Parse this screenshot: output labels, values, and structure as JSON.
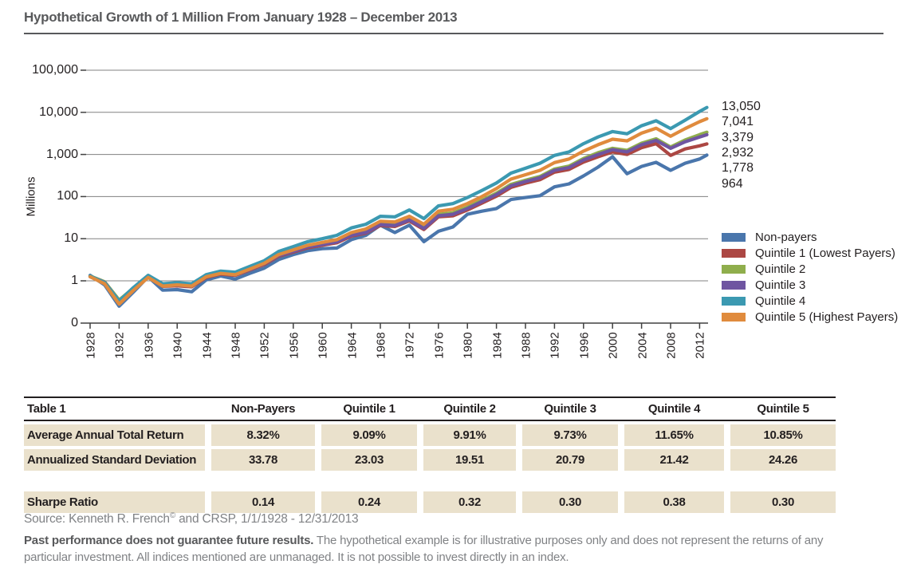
{
  "page": {
    "title": "Hypothetical Growth of 1 Million From January 1928 – December 2013"
  },
  "chart_data": {
    "type": "line",
    "y_scale": "log",
    "ylabel": "Millions",
    "y_tick_labels": [
      "100,000",
      "10,000",
      "1,000",
      "100",
      "10",
      "1",
      "0"
    ],
    "x_tick_years": [
      1928,
      1932,
      1936,
      1940,
      1944,
      1948,
      1952,
      1956,
      1960,
      1964,
      1968,
      1972,
      1976,
      1980,
      1984,
      1988,
      1992,
      1996,
      2000,
      2004,
      2008,
      2012
    ],
    "x": [
      1928,
      1930,
      1932,
      1934,
      1936,
      1938,
      1940,
      1942,
      1944,
      1946,
      1948,
      1950,
      1952,
      1954,
      1956,
      1958,
      1960,
      1962,
      1964,
      1966,
      1968,
      1970,
      1972,
      1974,
      1976,
      1978,
      1980,
      1982,
      1984,
      1986,
      1988,
      1990,
      1992,
      1994,
      1996,
      1998,
      2000,
      2002,
      2004,
      2006,
      2008,
      2010,
      2012,
      2013
    ],
    "series": [
      {
        "name": "Non-payers",
        "color": "#4a76ac",
        "final_value_label": "964",
        "values": [
          1.35,
          0.8,
          0.25,
          0.55,
          1.25,
          0.6,
          0.62,
          0.55,
          1.05,
          1.3,
          1.1,
          1.5,
          2.0,
          3.2,
          4.2,
          5.2,
          5.8,
          6.0,
          9.5,
          12,
          21,
          14,
          21,
          8.5,
          15,
          19,
          38,
          45,
          52,
          85,
          95,
          105,
          170,
          200,
          310,
          500,
          880,
          350,
          520,
          650,
          420,
          620,
          780,
          964
        ]
      },
      {
        "name": "Quintile 1 (Lowest Payers)",
        "color": "#ac4743",
        "final_value_label": "1,778",
        "values": [
          1.25,
          0.9,
          0.31,
          0.62,
          1.22,
          0.74,
          0.76,
          0.72,
          1.2,
          1.45,
          1.35,
          1.8,
          2.45,
          3.85,
          4.8,
          6.1,
          7.0,
          8.0,
          11.5,
          13.5,
          20.5,
          19.5,
          26.5,
          16.5,
          33,
          35,
          48,
          70,
          102,
          165,
          208,
          252,
          380,
          440,
          660,
          880,
          1150,
          1000,
          1450,
          1800,
          950,
          1350,
          1600,
          1778
        ]
      },
      {
        "name": "Quintile 2",
        "color": "#8fae4c",
        "final_value_label": "3,379",
        "values": [
          1.3,
          0.95,
          0.35,
          0.68,
          1.3,
          0.8,
          0.82,
          0.78,
          1.3,
          1.55,
          1.45,
          1.95,
          2.7,
          4.3,
          5.3,
          6.8,
          7.8,
          9.0,
          13,
          15,
          23,
          22,
          30,
          19,
          38,
          41,
          56,
          82,
          120,
          195,
          245,
          300,
          450,
          530,
          800,
          1100,
          1400,
          1250,
          1850,
          2350,
          1500,
          2200,
          2950,
          3379
        ]
      },
      {
        "name": "Quintile 3",
        "color": "#6f55a1",
        "final_value_label": "2,932",
        "values": [
          1.28,
          0.92,
          0.33,
          0.65,
          1.26,
          0.77,
          0.79,
          0.75,
          1.25,
          1.5,
          1.4,
          1.85,
          2.55,
          4.0,
          5.0,
          6.4,
          7.3,
          8.4,
          12,
          14,
          21.5,
          20.5,
          28,
          17.5,
          35,
          38,
          52,
          76,
          112,
          180,
          228,
          280,
          420,
          490,
          740,
          1000,
          1300,
          1150,
          1700,
          2150,
          1400,
          2000,
          2600,
          2932
        ]
      },
      {
        "name": "Quintile 4",
        "color": "#3b99b1",
        "final_value_label": "13,050",
        "values": [
          1.3,
          0.9,
          0.33,
          0.7,
          1.35,
          0.85,
          0.9,
          0.85,
          1.4,
          1.7,
          1.6,
          2.2,
          3.0,
          5.0,
          6.5,
          8.5,
          10,
          12,
          18,
          22,
          34,
          33,
          48,
          30,
          60,
          68,
          95,
          140,
          210,
          360,
          470,
          620,
          950,
          1150,
          1800,
          2600,
          3500,
          3100,
          4800,
          6300,
          4100,
          6500,
          10500,
          13050
        ]
      },
      {
        "name": "Quintile 5 (Highest Payers)",
        "color": "#e08b3d",
        "final_value_label": "7,041",
        "values": [
          1.25,
          0.85,
          0.28,
          0.6,
          1.2,
          0.75,
          0.8,
          0.75,
          1.25,
          1.5,
          1.4,
          1.9,
          2.6,
          4.2,
          5.4,
          7.0,
          8.2,
          9.5,
          14,
          17,
          26,
          25,
          34,
          22,
          45,
          50,
          68,
          100,
          155,
          260,
          330,
          420,
          640,
          780,
          1200,
          1700,
          2300,
          2100,
          3200,
          4200,
          2700,
          4100,
          6000,
          7041
        ]
      }
    ],
    "end_value_labels_top_to_bottom": [
      "13,050",
      "7,041",
      "3,379",
      "2,932",
      "1,778",
      "964"
    ],
    "legend_position": "right"
  },
  "table": {
    "title": "Table 1",
    "columns": [
      "Non-Payers",
      "Quintile 1",
      "Quintile 2",
      "Quintile 3",
      "Quintile 4",
      "Quintile 5"
    ],
    "rows": [
      {
        "label": "Average Annual Total Return",
        "values": [
          "8.32%",
          "9.09%",
          "9.91%",
          "9.73%",
          "11.65%",
          "10.85%"
        ],
        "separated": false
      },
      {
        "label": "Annualized Standard Deviation",
        "values": [
          "33.78",
          "23.03",
          "19.51",
          "20.79",
          "21.42",
          "24.26"
        ],
        "separated": false
      },
      {
        "label": "Sharpe Ratio",
        "values": [
          "0.14",
          "0.24",
          "0.32",
          "0.30",
          "0.38",
          "0.30"
        ],
        "separated": true
      }
    ]
  },
  "source": {
    "prefix": "Source: Kenneth R. French",
    "sup": "©",
    "suffix": " and CRSP, 1/1/1928 - 12/31/2013"
  },
  "footnote": {
    "bold": "Past performance does not guarantee future results.",
    "text": " The hypothetical example is for illustrative purposes only and does not represent the returns of any particular investment. All indices mentioned are unmanaged. It is not possible to invest directly in an index."
  }
}
